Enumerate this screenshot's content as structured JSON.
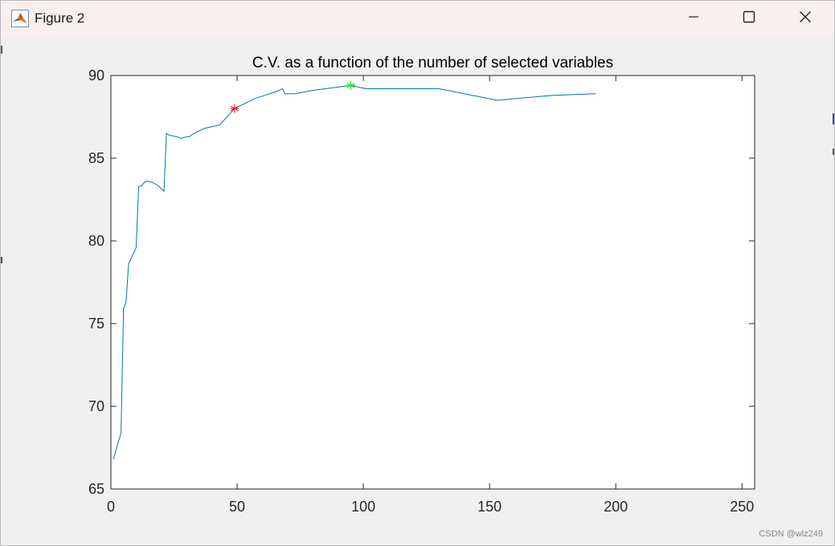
{
  "window": {
    "title": "Figure 2",
    "app_icon": "matlab-icon",
    "controls": [
      "minimize-icon",
      "maximize-icon",
      "close-icon"
    ]
  },
  "watermark": "CSDN @wlz249",
  "chart_data": {
    "type": "line",
    "title": "C.V. as a function of the number of selected variables",
    "xlabel": "",
    "ylabel": "",
    "xlim": [
      0,
      255
    ],
    "ylim": [
      65,
      90
    ],
    "xticks": [
      0,
      50,
      100,
      150,
      200,
      250
    ],
    "yticks": [
      65,
      70,
      75,
      80,
      85,
      90
    ],
    "grid": false,
    "series": [
      {
        "color": "#0072bd",
        "x": [
          1,
          4,
          5,
          6,
          7,
          10,
          11,
          12,
          13,
          14,
          15,
          17,
          19,
          21,
          22,
          23,
          26,
          28,
          30,
          31,
          33,
          37,
          43,
          49,
          57,
          61,
          65,
          68,
          69,
          73,
          80,
          95,
          101,
          110,
          130,
          153,
          175,
          192
        ],
        "values": [
          66.8,
          68.4,
          75.9,
          76.3,
          78.6,
          79.6,
          83.3,
          83.3,
          83.5,
          83.6,
          83.6,
          83.5,
          83.3,
          83.0,
          86.5,
          86.4,
          86.3,
          86.2,
          86.3,
          86.3,
          86.5,
          86.8,
          87.0,
          88.0,
          88.6,
          88.8,
          89.0,
          89.2,
          88.9,
          88.9,
          89.1,
          89.4,
          89.2,
          89.2,
          89.2,
          88.5,
          88.8,
          88.9
        ]
      }
    ],
    "markers": [
      {
        "x": 49,
        "y": 88.0,
        "color": "#ff0000",
        "symbol": "*"
      },
      {
        "x": 95,
        "y": 89.4,
        "color": "#00ee00",
        "symbol": "*"
      }
    ]
  }
}
